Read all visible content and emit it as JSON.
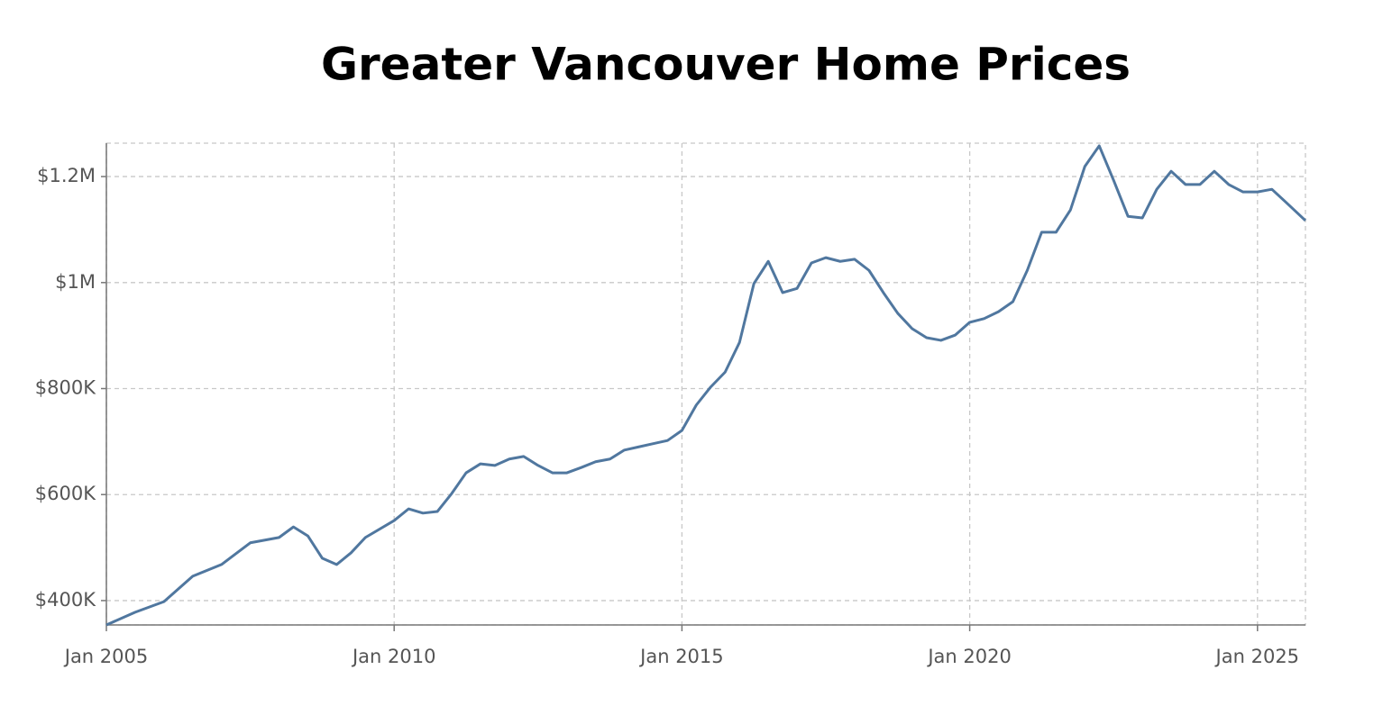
{
  "chart_data": {
    "type": "line",
    "title": "Greater Vancouver Home Prices",
    "x": [
      "2005-01",
      "2005-07",
      "2006-01",
      "2006-07",
      "2007-01",
      "2007-07",
      "2008-01",
      "2008-04",
      "2008-07",
      "2008-10",
      "2009-01",
      "2009-04",
      "2009-07",
      "2010-01",
      "2010-04",
      "2010-07",
      "2010-10",
      "2011-01",
      "2011-04",
      "2011-07",
      "2011-10",
      "2012-01",
      "2012-04",
      "2012-07",
      "2012-10",
      "2013-01",
      "2013-04",
      "2013-07",
      "2013-10",
      "2014-01",
      "2014-04",
      "2014-07",
      "2014-10",
      "2015-01",
      "2015-04",
      "2015-07",
      "2015-10",
      "2016-01",
      "2016-04",
      "2016-07",
      "2016-10",
      "2017-01",
      "2017-04",
      "2017-07",
      "2017-10",
      "2018-01",
      "2018-04",
      "2018-07",
      "2018-10",
      "2019-01",
      "2019-04",
      "2019-07",
      "2019-10",
      "2020-01",
      "2020-04",
      "2020-07",
      "2020-10",
      "2021-01",
      "2021-04",
      "2021-07",
      "2021-10",
      "2022-01",
      "2022-04",
      "2022-07",
      "2022-10",
      "2023-01",
      "2023-04",
      "2023-07",
      "2023-10",
      "2024-01",
      "2024-04",
      "2024-07",
      "2024-10",
      "2025-01",
      "2025-04",
      "2025-07",
      "2025-11"
    ],
    "series": [
      {
        "color": "#50779f",
        "values": [
          354000,
          378000,
          398000,
          446000,
          468000,
          509000,
          519000,
          539000,
          522000,
          480000,
          468000,
          490000,
          519000,
          551000,
          573000,
          565000,
          568000,
          602000,
          641000,
          658000,
          655000,
          667000,
          672000,
          655000,
          641000,
          641000,
          651000,
          662000,
          667000,
          684000,
          690000,
          696000,
          702000,
          721000,
          769000,
          803000,
          831000,
          887000,
          998000,
          1040000,
          981000,
          989000,
          1037000,
          1047000,
          1040000,
          1044000,
          1023000,
          981000,
          942000,
          913000,
          896000,
          891000,
          901000,
          925000,
          932000,
          945000,
          964000,
          1023000,
          1095000,
          1095000,
          1137000,
          1219000,
          1258000,
          1193000,
          1125000,
          1122000,
          1176000,
          1210000,
          1185000,
          1185000,
          1210000,
          1185000,
          1171000,
          1171000,
          1176000,
          1151000,
          1117000
        ]
      }
    ],
    "xlim": [
      "2005-01",
      "2025-11"
    ],
    "xticks": [
      {
        "value": "2005-01",
        "label": "Jan 2005"
      },
      {
        "value": "2010-01",
        "label": "Jan 2010"
      },
      {
        "value": "2015-01",
        "label": "Jan 2015"
      },
      {
        "value": "2020-01",
        "label": "Jan 2020"
      },
      {
        "value": "2025-01",
        "label": "Jan 2025"
      }
    ],
    "ylim": [
      354000,
      1263000
    ],
    "yticks": [
      {
        "value": 400000,
        "label": "$400K"
      },
      {
        "value": 600000,
        "label": "$600K"
      },
      {
        "value": 800000,
        "label": "$800K"
      },
      {
        "value": 1000000,
        "label": "$1M"
      },
      {
        "value": 1200000,
        "label": "$1.2M"
      }
    ],
    "grid": true
  }
}
